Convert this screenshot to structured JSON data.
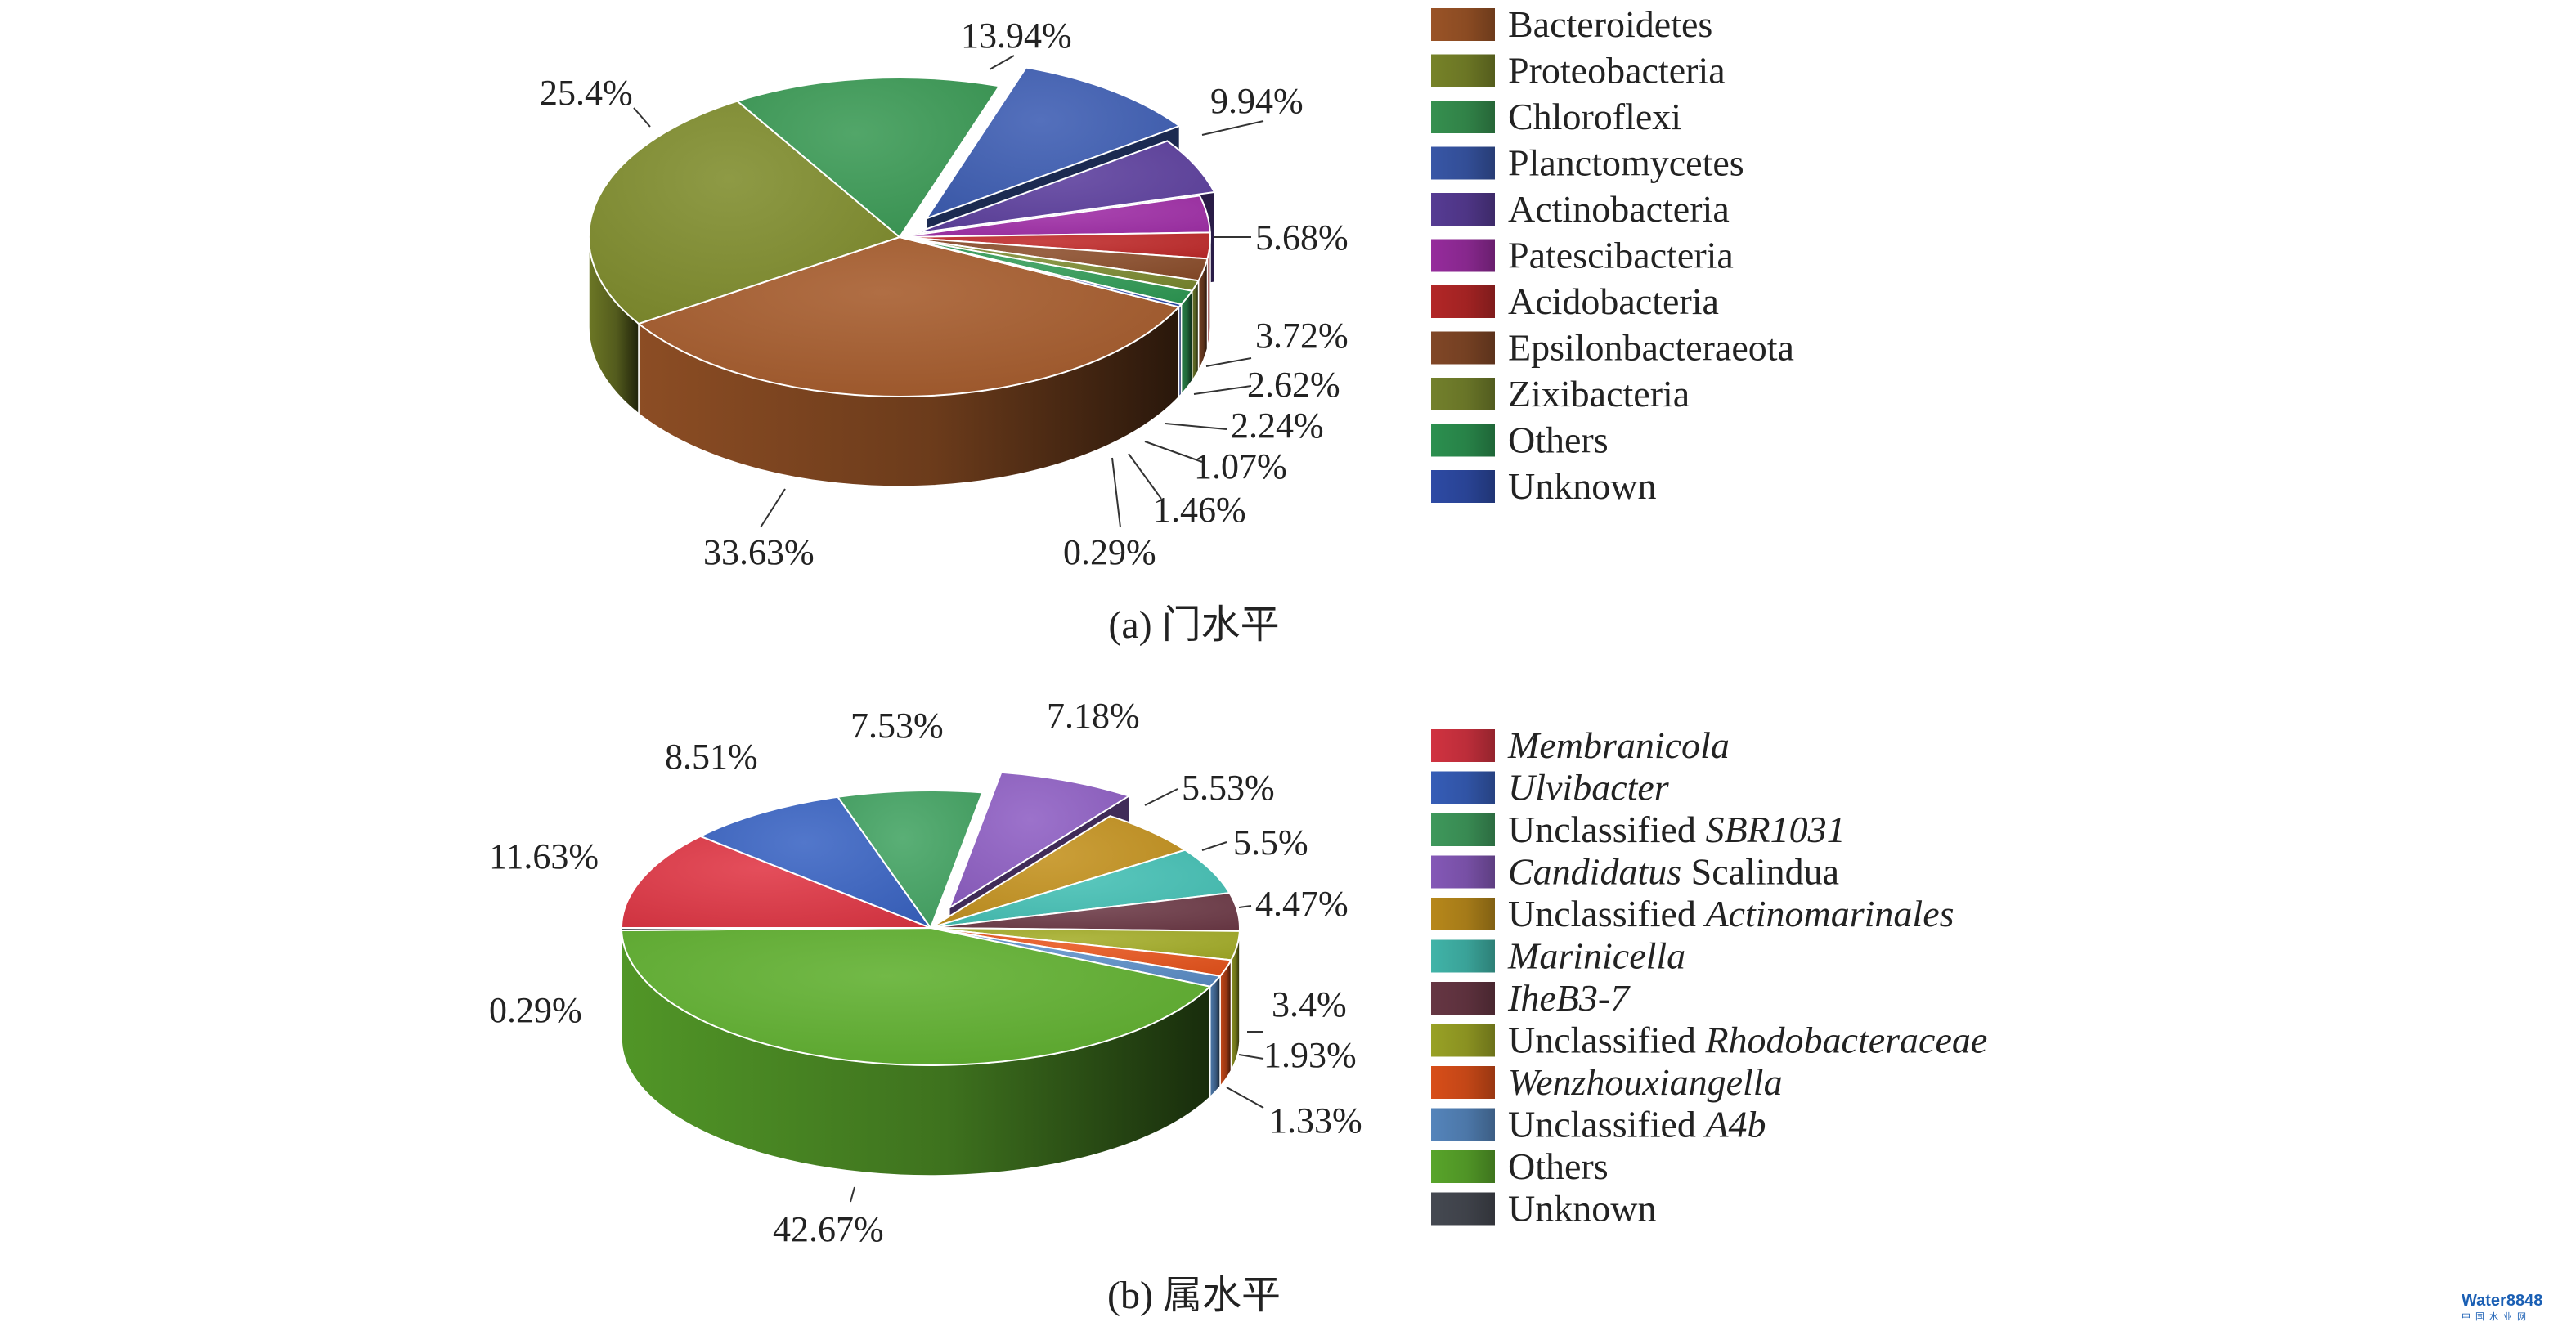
{
  "chart_data": [
    {
      "type": "pie",
      "caption": "(a) 门水平",
      "slices": [
        {
          "label": "Bacteroidetes",
          "value": 33.63,
          "value_label": "33.63%",
          "color": "#a55a2a"
        },
        {
          "label": "Proteobacteria",
          "value": 25.4,
          "value_label": "25.4%",
          "color": "#7f8c2c"
        },
        {
          "label": "Chloroflexi",
          "value": 13.94,
          "value_label": "13.94%",
          "color": "#3a9a55"
        },
        {
          "label": "Planctomycetes",
          "value": 9.94,
          "value_label": "9.94%",
          "color": "#3d5db3"
        },
        {
          "label": "Actinobacteria",
          "value": 5.68,
          "value_label": "5.68%",
          "color": "#5c3f9e"
        },
        {
          "label": "Patescibacteria",
          "value": 3.72,
          "value_label": "3.72%",
          "color": "#a12fa8"
        },
        {
          "label": "Acidobacteria",
          "value": 2.62,
          "value_label": "2.62%",
          "color": "#c02a2a"
        },
        {
          "label": "Epsilonbacteraeota",
          "value": 2.24,
          "value_label": "2.24%",
          "color": "#8b4d2a"
        },
        {
          "label": "Zixibacteria",
          "value": 1.07,
          "value_label": "1.07%",
          "color": "#7c8a30"
        },
        {
          "label": "Others",
          "value": 1.46,
          "value_label": "1.46%",
          "color": "#2f9a55"
        },
        {
          "label": "Unknown",
          "value": 0.29,
          "value_label": "0.29%",
          "color": "#3150b0"
        }
      ]
    },
    {
      "type": "pie",
      "caption": "(b) 属水平",
      "slices": [
        {
          "label": "Membranicola",
          "label_parts": [
            {
              "text": "Membranicola",
              "italic": true
            }
          ],
          "value": 11.63,
          "value_label": "11.63%",
          "color": "#e03645"
        },
        {
          "label": "Ulvibacter",
          "label_parts": [
            {
              "text": "Ulvibacter",
              "italic": true
            }
          ],
          "value": 8.51,
          "value_label": "8.51%",
          "color": "#3a64c4"
        },
        {
          "label": "Unclassified SBR1031",
          "label_parts": [
            {
              "text": "Unclassified ",
              "italic": false
            },
            {
              "text": "SBR1031",
              "italic": true
            }
          ],
          "value": 7.53,
          "value_label": "7.53%",
          "color": "#43a463"
        },
        {
          "label": "Candidatus Scalindua",
          "label_parts": [
            {
              "text": "Candidatus",
              "italic": true
            },
            {
              "text": " Scalindua",
              "italic": false
            }
          ],
          "value": 7.18,
          "value_label": "7.18%",
          "color": "#8e5fc4"
        },
        {
          "label": "Unclassified Actinomarinales",
          "label_parts": [
            {
              "text": "Unclassified ",
              "italic": false
            },
            {
              "text": "Actinomarinales",
              "italic": true
            }
          ],
          "value": 5.53,
          "value_label": "5.53%",
          "color": "#c4921e"
        },
        {
          "label": "Marinicella",
          "label_parts": [
            {
              "text": "Marinicella",
              "italic": true
            }
          ],
          "value": 5.5,
          "value_label": "5.5%",
          "color": "#45c1b5"
        },
        {
          "label": "IheB3-7",
          "label_parts": [
            {
              "text": "IheB3-7",
              "italic": true
            }
          ],
          "value": 4.47,
          "value_label": "4.47%",
          "color": "#6e3b48"
        },
        {
          "label": "Unclassified Rhodobacteraceae",
          "label_parts": [
            {
              "text": "Unclassified ",
              "italic": false
            },
            {
              "text": "Rhodobacteraceae",
              "italic": true
            }
          ],
          "value": 3.4,
          "value_label": "3.4%",
          "color": "#a4ad28"
        },
        {
          "label": "Wenzhouxiangella",
          "label_parts": [
            {
              "text": "Wenzhouxiangella",
              "italic": true
            }
          ],
          "value": 1.93,
          "value_label": "1.93%",
          "color": "#e8541c"
        },
        {
          "label": "Unclassified A4b",
          "label_parts": [
            {
              "text": "Unclassified ",
              "italic": false
            },
            {
              "text": "A4b",
              "italic": true
            }
          ],
          "value": 1.33,
          "value_label": "1.33%",
          "color": "#5b8ec8"
        },
        {
          "label": "Others",
          "label_parts": [
            {
              "text": "Others",
              "italic": false
            }
          ],
          "value": 42.67,
          "value_label": "42.67%",
          "color": "#5fb02e"
        },
        {
          "label": "Unknown",
          "label_parts": [
            {
              "text": "Unknown",
              "italic": false
            }
          ],
          "value": 0.29,
          "value_label": "0.29%",
          "color": "#4a4f58"
        }
      ]
    }
  ],
  "watermark": {
    "brand": "Water8848",
    "sub": "中国水业网"
  }
}
